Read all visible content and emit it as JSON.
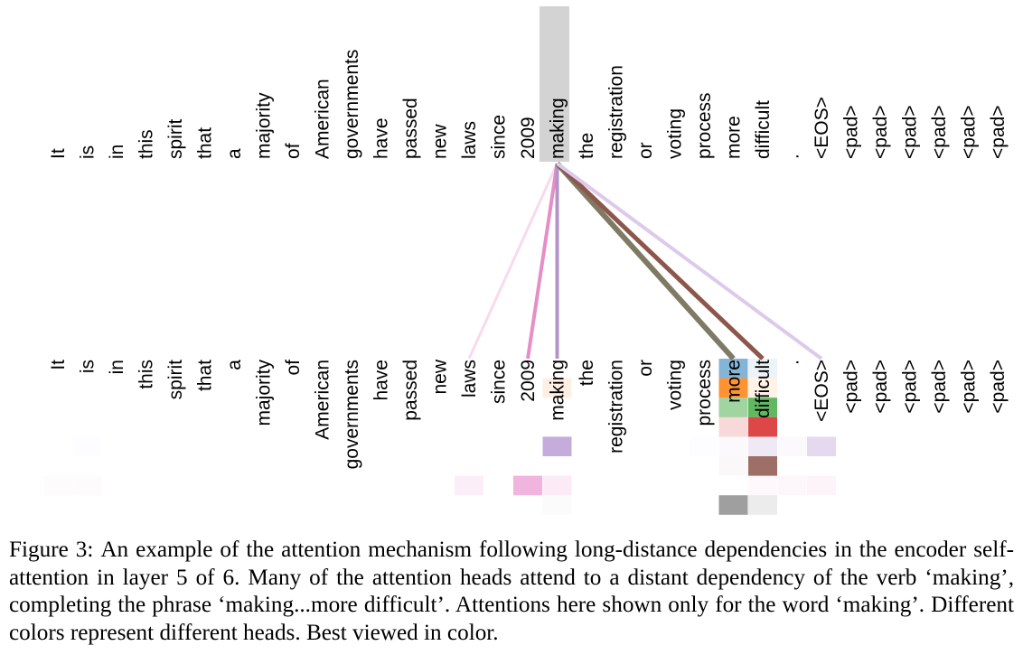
{
  "tokens": [
    "It",
    "is",
    "in",
    "this",
    "spirit",
    "that",
    "a",
    "majority",
    "of",
    "American",
    "governments",
    "have",
    "passed",
    "new",
    "laws",
    "since",
    "2009",
    "making",
    "the",
    "registration",
    "or",
    "voting",
    "process",
    "more",
    "difficult",
    ".",
    "<EOS>",
    "<pad>",
    "<pad>",
    "<pad>",
    "<pad>",
    "<pad>",
    "<pad>"
  ],
  "query_token_index": 17,
  "attention_lines": [
    {
      "target": 14,
      "color": "#f7d6ea",
      "opacity": 0.9,
      "width": 3
    },
    {
      "target": 16,
      "color": "#e58ec8",
      "opacity": 1.0,
      "width": 4
    },
    {
      "target": 17,
      "color": "#b294c7",
      "opacity": 1.0,
      "width": 4
    },
    {
      "target": 23,
      "color": "#7f7a63",
      "opacity": 1.0,
      "width": 6
    },
    {
      "target": 24,
      "color": "#8c564b",
      "opacity": 1.0,
      "width": 5
    },
    {
      "target": 26,
      "color": "#ddc9ea",
      "opacity": 1.0,
      "width": 4
    }
  ],
  "head_colors": [
    "#1f77b4",
    "#ff7f0e",
    "#2ca02c",
    "#d62728",
    "#9467bd",
    "#8c564b",
    "#e377c2",
    "#7f7f7f"
  ],
  "attention_cells": [
    {
      "token": 23,
      "head": 0,
      "weight": 0.55
    },
    {
      "token": 24,
      "head": 0,
      "weight": 0.08
    },
    {
      "token": 17,
      "head": 1,
      "weight": 0.12
    },
    {
      "token": 23,
      "head": 1,
      "weight": 0.85
    },
    {
      "token": 24,
      "head": 1,
      "weight": 0.1
    },
    {
      "token": 23,
      "head": 2,
      "weight": 0.45
    },
    {
      "token": 24,
      "head": 2,
      "weight": 0.75
    },
    {
      "token": 23,
      "head": 3,
      "weight": 0.18
    },
    {
      "token": 24,
      "head": 3,
      "weight": 0.85
    },
    {
      "token": 1,
      "head": 4,
      "weight": 0.02
    },
    {
      "token": 17,
      "head": 4,
      "weight": 0.55
    },
    {
      "token": 22,
      "head": 4,
      "weight": 0.02
    },
    {
      "token": 23,
      "head": 4,
      "weight": 0.04
    },
    {
      "token": 24,
      "head": 4,
      "weight": 0.15
    },
    {
      "token": 25,
      "head": 4,
      "weight": 0.04
    },
    {
      "token": 26,
      "head": 4,
      "weight": 0.25
    },
    {
      "token": 23,
      "head": 5,
      "weight": 0.04
    },
    {
      "token": 24,
      "head": 5,
      "weight": 0.85
    },
    {
      "token": 0,
      "head": 6,
      "weight": 0.03
    },
    {
      "token": 1,
      "head": 6,
      "weight": 0.03
    },
    {
      "token": 14,
      "head": 6,
      "weight": 0.12
    },
    {
      "token": 16,
      "head": 6,
      "weight": 0.55
    },
    {
      "token": 17,
      "head": 6,
      "weight": 0.15
    },
    {
      "token": 24,
      "head": 6,
      "weight": 0.05
    },
    {
      "token": 25,
      "head": 6,
      "weight": 0.06
    },
    {
      "token": 26,
      "head": 6,
      "weight": 0.08
    },
    {
      "token": 17,
      "head": 7,
      "weight": 0.03
    },
    {
      "token": 23,
      "head": 7,
      "weight": 0.75
    },
    {
      "token": 24,
      "head": 7,
      "weight": 0.15
    }
  ],
  "caption": {
    "label": "Figure 3:",
    "text": "An example of the attention mechanism following long-distance dependencies in the encoder self-attention in layer 5 of 6. Many of the attention heads attend to a distant dependency of the verb ‘making’, completing the phrase ‘making...more difficult’. Attentions here shown only for the word ‘making’. Different colors represent different heads. Best viewed in color."
  }
}
